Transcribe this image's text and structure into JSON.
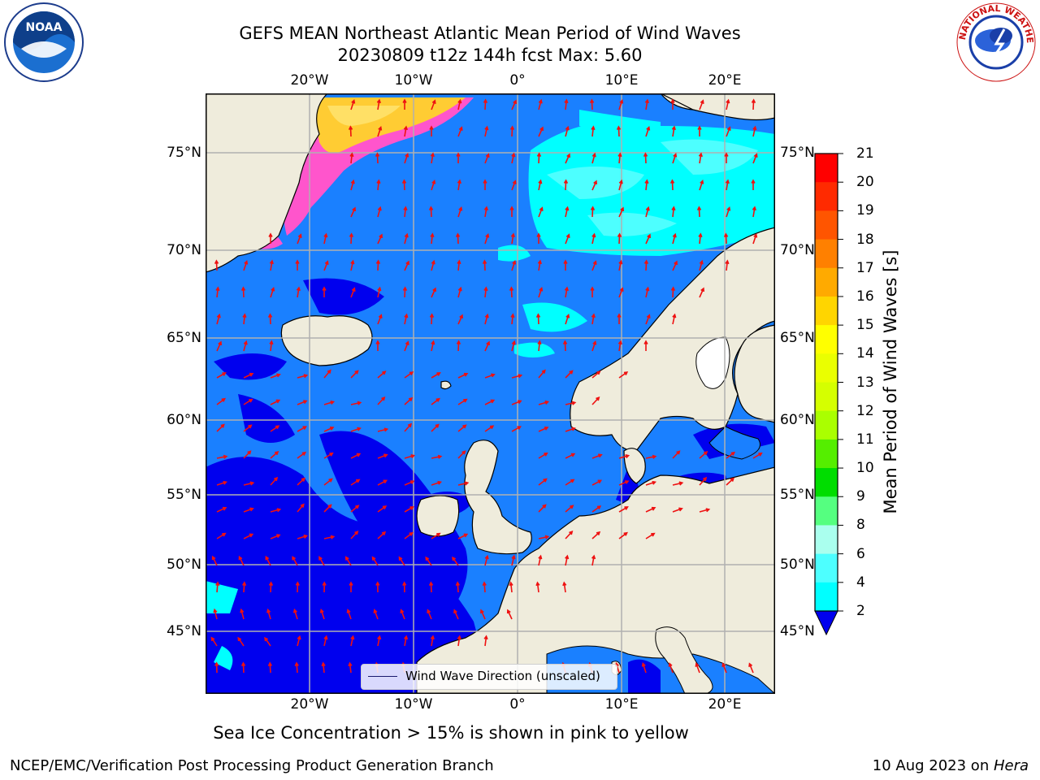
{
  "title_line1": "GEFS MEAN Northeast Atlantic Mean Period of Wind Waves",
  "title_line2": "20230809 t12z 144h fcst   Max: 5.60",
  "logos": {
    "left": {
      "icon": "noaa-logo",
      "text": "NOAA"
    },
    "right": {
      "icon": "nws-logo",
      "text": "NATIONAL WEATHER SERVICE"
    }
  },
  "map": {
    "lon_labels": [
      "20°W",
      "10°W",
      "0°",
      "10°E",
      "20°E"
    ],
    "lat_labels": [
      "75°N",
      "70°N",
      "65°N",
      "60°N",
      "55°N",
      "50°N",
      "45°N"
    ],
    "legend_label": "Wind Wave Direction (unscaled)",
    "colors": {
      "land": "#efecdc",
      "level_2_4": "#1a80ff",
      "level_lt_2": "#0000ee",
      "level_4_6": "#00ffff",
      "level_6_8": "#4dffff",
      "ice_pink": "#ff55cc",
      "ice_yellow": "#ffcc33",
      "arrow": "#ee1111",
      "grid": "#b0b0b0"
    }
  },
  "colorbar": {
    "label": "Mean Period of Wind Waves [s]",
    "ticks": [
      "21",
      "20",
      "19",
      "18",
      "17",
      "16",
      "15",
      "14",
      "13",
      "12",
      "11",
      "10",
      "9",
      "8",
      "6",
      "4",
      "2"
    ],
    "colors": [
      "#ff0000",
      "#ff2a00",
      "#ff5500",
      "#ff8000",
      "#ffaa00",
      "#ffd500",
      "#ffff00",
      "#eaff00",
      "#d5ff00",
      "#aaff00",
      "#55ee00",
      "#00dd00",
      "#55ff80",
      "#aaffee",
      "#4dffff",
      "#00ffff",
      "#1a80ff"
    ],
    "extend_color": "#0000ee"
  },
  "note": "Sea Ice Concentration > 15% is shown in pink to yellow",
  "footer": {
    "left": "NCEP/EMC/Verification Post Processing Product Generation Branch",
    "right_date": "10 Aug 2023 on ",
    "right_host": "Hera"
  }
}
